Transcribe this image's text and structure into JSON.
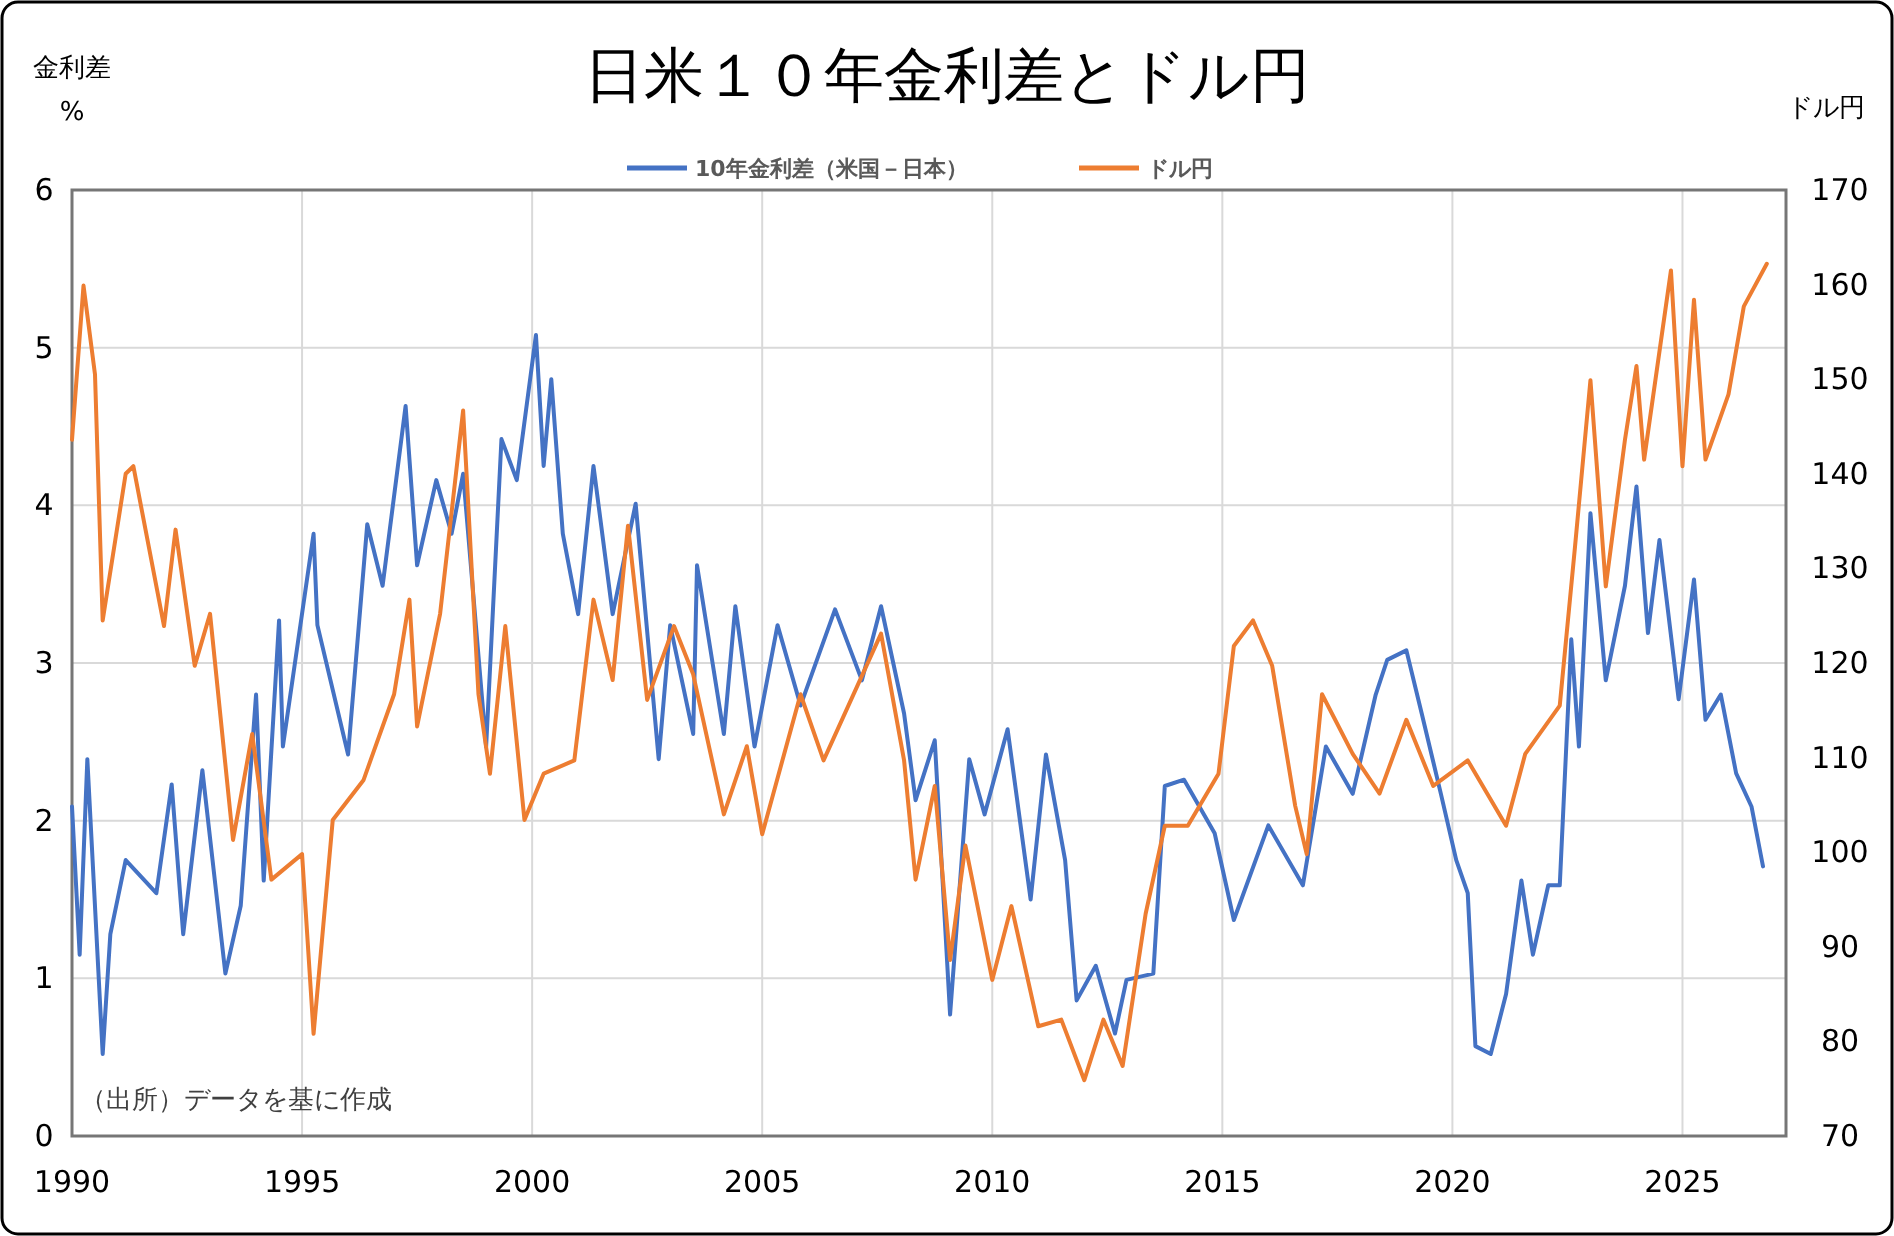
{
  "chart_data": {
    "type": "line",
    "title": "日米１０年金利差とドル円",
    "ylabel": "金利差\n%",
    "y2label": "ドル円",
    "annotations": [
      "（出所）データを基に作成"
    ],
    "xlim": [
      "1990",
      "2027-04"
    ],
    "xticks": [
      "1990",
      "1995",
      "2000",
      "2005",
      "2010",
      "2015",
      "2020",
      "2025"
    ],
    "ylim": [
      0,
      6
    ],
    "yticks": [
      0,
      1,
      2,
      3,
      4,
      5,
      6
    ],
    "y2lim": [
      70,
      170
    ],
    "y2ticks": [
      70,
      80,
      90,
      100,
      110,
      120,
      130,
      140,
      150,
      160,
      170
    ],
    "grid": true,
    "legend": "top",
    "marker": "none",
    "line_style": "solid",
    "series": [
      {
        "name": "10年金利差（米国－日本）",
        "color": "#4472c4",
        "x": [
          "1990-01",
          "1990-03",
          "1990-05",
          "1990-09",
          "1990-11",
          "1991-03",
          "1991-11",
          "1992-03",
          "1992-06",
          "1992-11",
          "1993-05",
          "1993-09",
          "1994-01",
          "1994-03",
          "1994-07",
          "1994-08",
          "1995-04",
          "1995-05",
          "1996-01",
          "1996-06",
          "1996-10",
          "1997-04",
          "1997-07",
          "1997-12",
          "1998-04",
          "1998-07",
          "1999-01",
          "1999-05",
          "1999-09",
          "2000-02",
          "2000-04",
          "2000-06",
          "2000-09",
          "2001-01",
          "2001-05",
          "2001-10",
          "2002-04",
          "2002-10",
          "2003-01",
          "2003-07",
          "2003-08",
          "2004-03",
          "2004-06",
          "2004-11",
          "2005-05",
          "2005-11",
          "2006-08",
          "2007-03",
          "2007-08",
          "2008-02",
          "2008-05",
          "2008-10",
          "2009-02",
          "2009-07",
          "2009-11",
          "2010-05",
          "2010-11",
          "2011-03",
          "2011-08",
          "2011-11",
          "2012-04",
          "2012-09",
          "2012-12",
          "2013-07",
          "2013-10",
          "2014-03",
          "2014-11",
          "2015-04",
          "2016-01",
          "2016-10",
          "2017-04",
          "2017-11",
          "2018-05",
          "2018-08",
          "2019-01",
          "2019-05",
          "2019-10",
          "2020-02",
          "2020-05",
          "2020-07",
          "2020-11",
          "2021-03",
          "2021-07",
          "2021-10",
          "2022-02",
          "2022-05",
          "2022-08",
          "2022-10",
          "2023-01",
          "2023-05",
          "2023-10",
          "2024-01",
          "2024-04",
          "2024-07",
          "2024-12",
          "2025-04",
          "2025-07",
          "2025-11",
          "2026-03",
          "2026-07",
          "2026-10"
        ],
        "values": [
          2.09,
          1.15,
          2.39,
          0.52,
          1.28,
          1.75,
          1.54,
          2.23,
          1.28,
          2.32,
          1.03,
          1.46,
          2.8,
          1.62,
          3.27,
          2.47,
          3.82,
          3.24,
          2.42,
          3.88,
          3.49,
          4.63,
          3.62,
          4.16,
          3.82,
          4.2,
          2.47,
          4.42,
          4.16,
          5.08,
          4.25,
          4.8,
          3.82,
          3.31,
          4.25,
          3.31,
          4.01,
          2.39,
          3.24,
          2.55,
          3.62,
          2.55,
          3.36,
          2.47,
          3.24,
          2.73,
          3.34,
          2.89,
          3.36,
          2.68,
          2.13,
          2.51,
          0.77,
          2.39,
          2.04,
          2.58,
          1.5,
          2.42,
          1.75,
          0.86,
          1.08,
          0.65,
          0.99,
          1.03,
          2.22,
          2.26,
          1.92,
          1.37,
          1.97,
          1.59,
          2.47,
          2.17,
          2.8,
          3.02,
          3.08,
          2.68,
          2.17,
          1.75,
          1.54,
          0.57,
          0.52,
          0.9,
          1.62,
          1.15,
          1.59,
          1.59,
          3.15,
          2.47,
          3.95,
          2.89,
          3.49,
          4.12,
          3.19,
          3.78,
          2.77,
          3.53,
          2.64,
          2.8,
          2.3,
          2.09,
          1.71
        ]
      },
      {
        "name": "ドル円",
        "color": "#ed7d31",
        "axis": "y2",
        "x": [
          "1990-01",
          "1990-04",
          "1990-07",
          "1990-09",
          "1991-03",
          "1991-05",
          "1992-01",
          "1992-04",
          "1992-09",
          "1993-01",
          "1993-07",
          "1993-12",
          "1994-05",
          "1995-01",
          "1995-04",
          "1995-09",
          "1996-05",
          "1997-01",
          "1997-05",
          "1997-07",
          "1998-01",
          "1998-07",
          "1998-11",
          "1999-02",
          "1999-06",
          "1999-11",
          "2000-04",
          "2000-12",
          "2001-05",
          "2001-10",
          "2002-02",
          "2002-07",
          "2003-02",
          "2003-07",
          "2004-03",
          "2004-09",
          "2005-01",
          "2005-11",
          "2006-05",
          "2007-08",
          "2008-02",
          "2008-05",
          "2008-10",
          "2009-02",
          "2009-06",
          "2010-01",
          "2010-06",
          "2011-01",
          "2011-07",
          "2012-01",
          "2012-06",
          "2012-11",
          "2013-05",
          "2013-10",
          "2014-04",
          "2014-12",
          "2015-04",
          "2015-09",
          "2016-02",
          "2016-08",
          "2016-11",
          "2017-03",
          "2017-11",
          "2018-06",
          "2019-01",
          "2019-08",
          "2020-05",
          "2021-03",
          "2021-08",
          "2022-05",
          "2022-09",
          "2023-01",
          "2023-05",
          "2023-10",
          "2024-01",
          "2024-03",
          "2024-10",
          "2025-01",
          "2025-04",
          "2025-07",
          "2026-01",
          "2026-05",
          "2026-11"
        ],
        "values": [
          143.6,
          159.9,
          150.5,
          124.5,
          140.0,
          140.8,
          123.9,
          134.1,
          119.7,
          125.2,
          101.3,
          112.5,
          97.1,
          99.8,
          80.8,
          103.4,
          107.6,
          116.7,
          126.7,
          113.3,
          125.2,
          146.7,
          116.7,
          108.3,
          123.9,
          103.4,
          108.3,
          109.7,
          126.7,
          118.2,
          134.5,
          116.1,
          123.9,
          118.8,
          104.0,
          111.2,
          101.9,
          116.7,
          109.7,
          123.1,
          109.7,
          97.1,
          107.0,
          88.6,
          100.7,
          86.5,
          94.3,
          81.6,
          82.3,
          75.9,
          82.3,
          77.4,
          93.5,
          102.8,
          102.8,
          108.3,
          121.8,
          124.5,
          119.7,
          104.9,
          99.8,
          116.7,
          110.4,
          106.2,
          114.0,
          107.0,
          109.7,
          102.8,
          110.4,
          115.5,
          132.4,
          149.9,
          128.1,
          143.6,
          151.4,
          141.5,
          161.5,
          140.8,
          158.4,
          141.5,
          148.4,
          157.7,
          162.2
        ]
      }
    ]
  }
}
